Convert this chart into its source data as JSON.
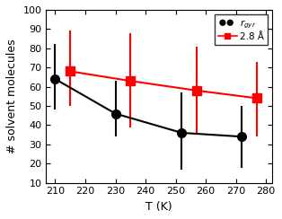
{
  "black_x": [
    210,
    230,
    252,
    272
  ],
  "black_y": [
    64,
    46,
    36,
    34
  ],
  "black_yerr_upper": [
    18,
    17,
    21,
    16
  ],
  "black_yerr_lower": [
    16,
    12,
    19,
    16
  ],
  "red_x": [
    215,
    235,
    257,
    277
  ],
  "red_y": [
    68,
    63,
    58,
    54
  ],
  "red_yerr_upper": [
    21,
    25,
    23,
    19
  ],
  "red_yerr_lower": [
    18,
    24,
    22,
    20
  ],
  "xlabel": "T (K)",
  "ylabel": "# solvent molecules",
  "xlim": [
    207,
    282
  ],
  "ylim": [
    10,
    100
  ],
  "yticks": [
    10,
    20,
    30,
    40,
    50,
    60,
    70,
    80,
    90,
    100
  ],
  "xticks": [
    210,
    220,
    230,
    240,
    250,
    260,
    270,
    280
  ],
  "black_color": "#000000",
  "red_color": "#ff0000",
  "background_color": "#ffffff",
  "label_red": "2.8 Å",
  "markersize": 7,
  "linewidth": 1.5
}
